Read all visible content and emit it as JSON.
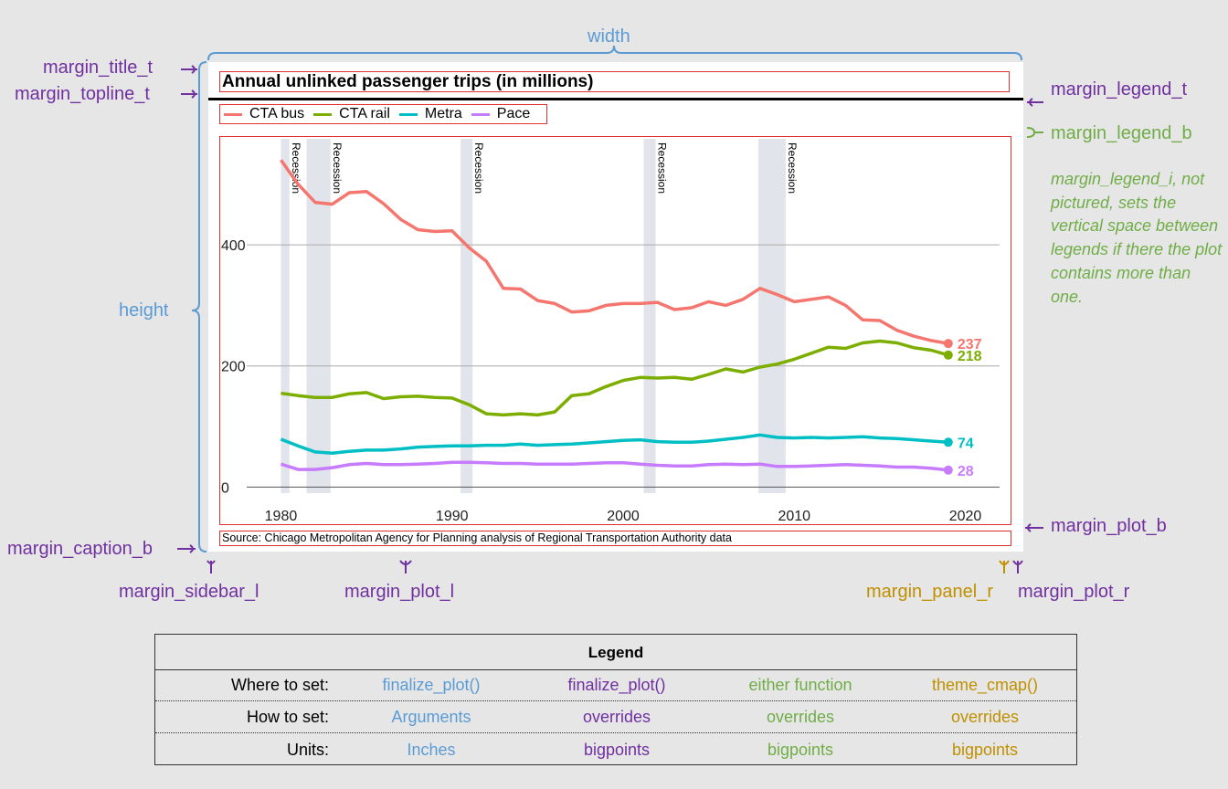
{
  "annotations": {
    "width": "width",
    "height": "height",
    "margin_title_t": "margin_title_t",
    "margin_topline_t": "margin_topline_t",
    "margin_caption_b": "margin_caption_b",
    "margin_sidebar_l": "margin_sidebar_l",
    "margin_plot_l": "margin_plot_l",
    "margin_panel_r": "margin_panel_r",
    "margin_plot_r": "margin_plot_r",
    "margin_legend_t": "margin_legend_t",
    "margin_legend_b": "margin_legend_b",
    "margin_plot_b": "margin_plot_b",
    "margin_legend_i_note": "margin_legend_i, not pictured, sets the vertical space between legends if there the plot contains more than one."
  },
  "colors": {
    "blue": "#5b9bd5",
    "purple": "#7030a0",
    "green": "#70ad47",
    "gold": "#bf9000",
    "highlight_box": "#e03030"
  },
  "plot": {
    "title": "Annual unlinked passenger trips (in millions)",
    "caption": "Source: Chicago  Metropolitan  Agency for Planning  analysis  of Regional  Transportation  Authority data"
  },
  "chart_data": {
    "type": "line",
    "title": "Annual unlinked passenger trips (in millions)",
    "xlim": [
      1978,
      2022
    ],
    "ylim": [
      -10,
      575
    ],
    "x_ticks": [
      1980,
      1990,
      2000,
      2010,
      2020
    ],
    "y_ticks": [
      0,
      200,
      400
    ],
    "grid": "horizontal",
    "legend": "top-left",
    "recessions": [
      {
        "label": "Recession",
        "start": 1980.0,
        "end": 1980.5
      },
      {
        "label": "Recession",
        "start": 1981.5,
        "end": 1982.9
      },
      {
        "label": "Recession",
        "start": 1990.5,
        "end": 1991.2
      },
      {
        "label": "Recession",
        "start": 2001.2,
        "end": 2001.9
      },
      {
        "label": "Recession",
        "start": 2007.9,
        "end": 2009.5
      }
    ],
    "x": [
      1980,
      1981,
      1982,
      1983,
      1984,
      1985,
      1986,
      1987,
      1988,
      1989,
      1990,
      1991,
      1992,
      1993,
      1994,
      1995,
      1996,
      1997,
      1998,
      1999,
      2000,
      2001,
      2002,
      2003,
      2004,
      2005,
      2006,
      2007,
      2008,
      2009,
      2010,
      2011,
      2012,
      2013,
      2014,
      2015,
      2016,
      2017,
      2018,
      2019
    ],
    "series": [
      {
        "name": "CTA bus",
        "color": "#f4766e",
        "end_label": "237",
        "values": [
          540,
          500,
          470,
          467,
          486,
          488,
          468,
          442,
          425,
          422,
          423,
          395,
          373,
          328,
          327,
          308,
          303,
          289,
          291,
          300,
          303,
          303,
          305,
          293,
          296,
          306,
          300,
          310,
          328,
          318,
          306,
          310,
          314,
          300,
          276,
          275,
          259,
          249,
          242,
          237
        ]
      },
      {
        "name": "CTA rail",
        "color": "#7cae00",
        "end_label": "218",
        "values": [
          155,
          151,
          148,
          148,
          154,
          156,
          146,
          149,
          150,
          148,
          147,
          136,
          121,
          119,
          121,
          119,
          124,
          151,
          154,
          166,
          176,
          181,
          180,
          181,
          178,
          186,
          195,
          190,
          198,
          203,
          211,
          221,
          231,
          229,
          238,
          241,
          238,
          230,
          226,
          218
        ]
      },
      {
        "name": "Metra",
        "color": "#00bfc4",
        "end_label": "74",
        "values": [
          79,
          68,
          58,
          56,
          59,
          61,
          61,
          63,
          66,
          67,
          68,
          68,
          69,
          69,
          71,
          69,
          70,
          71,
          73,
          75,
          77,
          78,
          75,
          74,
          74,
          76,
          79,
          82,
          86,
          82,
          81,
          82,
          81,
          82,
          83,
          81,
          80,
          78,
          76,
          74
        ]
      },
      {
        "name": "Pace",
        "color": "#c77cff",
        "end_label": "28",
        "values": [
          38,
          29,
          29,
          32,
          37,
          39,
          37,
          37,
          38,
          39,
          41,
          41,
          40,
          39,
          39,
          38,
          38,
          38,
          39,
          40,
          40,
          38,
          36,
          35,
          35,
          37,
          38,
          37,
          38,
          34,
          34,
          35,
          36,
          37,
          36,
          35,
          33,
          33,
          31,
          28
        ]
      }
    ]
  },
  "legend_table": {
    "title": "Legend",
    "rows": [
      {
        "label": "Where to set:",
        "cells": [
          "finalize_plot()",
          "finalize_plot()",
          "either function",
          "theme_cmap()"
        ]
      },
      {
        "label": "How to set:",
        "cells": [
          "Arguments",
          "overrides",
          "overrides",
          "overrides"
        ]
      },
      {
        "label": "Units:",
        "cells": [
          "Inches",
          "bigpoints",
          "bigpoints",
          "bigpoints"
        ]
      }
    ]
  }
}
